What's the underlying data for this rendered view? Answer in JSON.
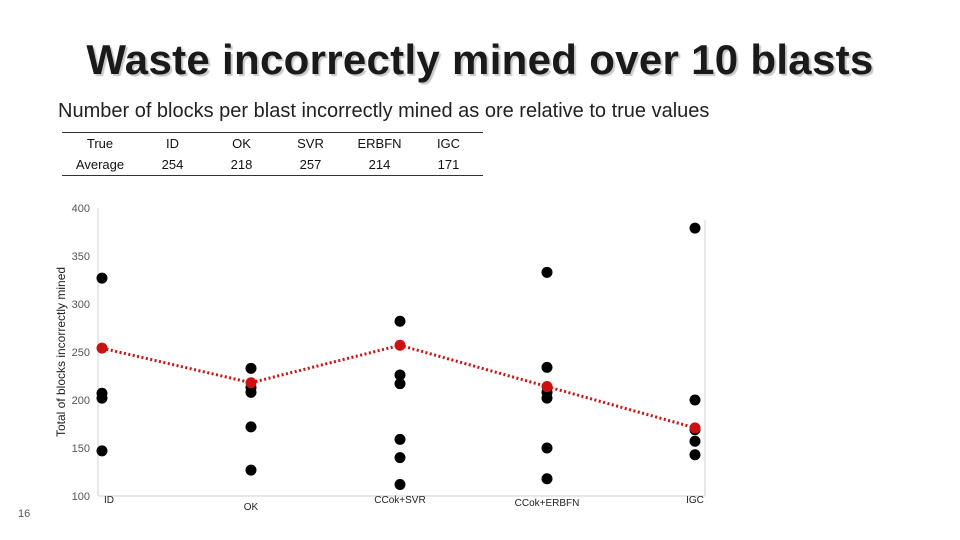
{
  "title": "Waste incorrectly mined over 10 blasts",
  "subtitle": "Number of blocks per blast incorrectly mined  as ore relative to true values",
  "slide_number": "16",
  "table": {
    "headers": [
      "True",
      "ID",
      "OK",
      "SVR",
      "ERBFN",
      "IGC"
    ],
    "row": [
      "Average",
      "254",
      "218",
      "257",
      "214",
      "171"
    ]
  },
  "chart_data": {
    "type": "scatter",
    "title": "",
    "xlabel": "",
    "ylabel": "Total of blocks incorrectly mined",
    "ylim": [
      100,
      400
    ],
    "yticks": [
      100,
      150,
      200,
      250,
      300,
      350,
      400
    ],
    "grid": false,
    "categories": [
      "ID",
      "OK",
      "CCok+SVR",
      "CCok+ERBFN",
      "IGC"
    ],
    "series": [
      {
        "color": "#000000",
        "points": [
          {
            "x": "ID",
            "y": 327
          },
          {
            "x": "ID",
            "y": 207
          },
          {
            "x": "ID",
            "y": 202
          },
          {
            "x": "ID",
            "y": 147
          },
          {
            "x": "OK",
            "y": 233
          },
          {
            "x": "OK",
            "y": 213
          },
          {
            "x": "OK",
            "y": 208
          },
          {
            "x": "OK",
            "y": 172
          },
          {
            "x": "OK",
            "y": 127
          },
          {
            "x": "CCok+SVR",
            "y": 282
          },
          {
            "x": "CCok+SVR",
            "y": 226
          },
          {
            "x": "CCok+SVR",
            "y": 217
          },
          {
            "x": "CCok+SVR",
            "y": 159
          },
          {
            "x": "CCok+SVR",
            "y": 140
          },
          {
            "x": "CCok+SVR",
            "y": 112
          },
          {
            "x": "CCok+ERBFN",
            "y": 333
          },
          {
            "x": "CCok+ERBFN",
            "y": 234
          },
          {
            "x": "CCok+ERBFN",
            "y": 208
          },
          {
            "x": "CCok+ERBFN",
            "y": 202
          },
          {
            "x": "CCok+ERBFN",
            "y": 150
          },
          {
            "x": "CCok+ERBFN",
            "y": 118
          },
          {
            "x": "IGC",
            "y": 379
          },
          {
            "x": "IGC",
            "y": 200
          },
          {
            "x": "IGC",
            "y": 169
          },
          {
            "x": "IGC",
            "y": 157
          },
          {
            "x": "IGC",
            "y": 143
          }
        ]
      },
      {
        "color": "#cc1111",
        "line_style": "dotted",
        "points": [
          {
            "x": "ID",
            "y": 254
          },
          {
            "x": "OK",
            "y": 218
          },
          {
            "x": "CCok+SVR",
            "y": 257
          },
          {
            "x": "CCok+ERBFN",
            "y": 214
          },
          {
            "x": "IGC",
            "y": 171
          }
        ]
      }
    ]
  }
}
